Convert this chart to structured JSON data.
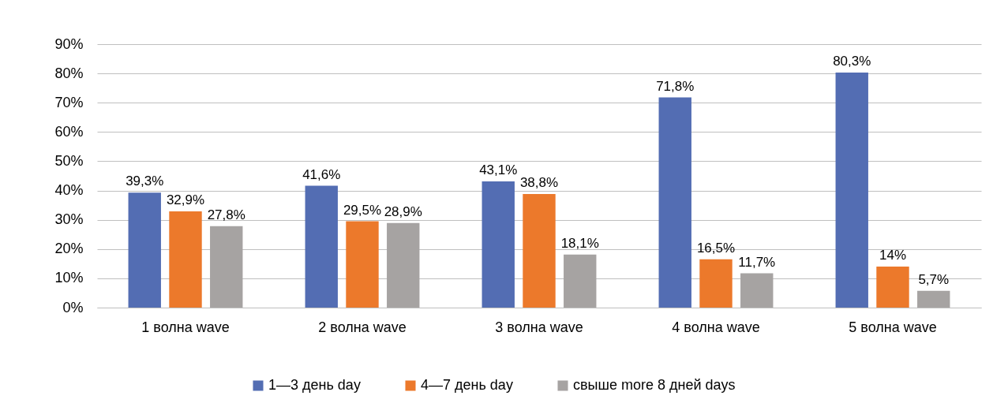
{
  "chart_data": {
    "type": "bar",
    "categories": [
      "1 волна  wave",
      "2 волна wave",
      "3 волна wave",
      "4 волна wave",
      "5 волна wave"
    ],
    "series": [
      {
        "name": "1—3 день day",
        "color": "#536db3",
        "values": [
          39.3,
          41.6,
          43.1,
          71.8,
          80.3
        ],
        "value_labels": [
          "39,3%",
          "41,6%",
          "43,1%",
          "71,8%",
          "80,3%"
        ]
      },
      {
        "name": "4—7 день day",
        "color": "#ec792b",
        "values": [
          32.9,
          29.5,
          38.8,
          16.5,
          14
        ],
        "value_labels": [
          "32,9%",
          "29,5%",
          "38,8%",
          "16,5%",
          "14%"
        ]
      },
      {
        "name": "свыше more 8 дней days",
        "color": "#a6a3a2",
        "values": [
          27.8,
          28.9,
          18.1,
          11.7,
          5.7
        ],
        "value_labels": [
          "27,8%",
          "28,9%",
          "18,1%",
          "11,7%",
          "5,7%"
        ]
      }
    ],
    "ylim": [
      0,
      90
    ],
    "yticks": [
      {
        "value": 0,
        "label": "0%"
      },
      {
        "value": 10,
        "label": "10%"
      },
      {
        "value": 20,
        "label": "20%"
      },
      {
        "value": 30,
        "label": "30%"
      },
      {
        "value": 40,
        "label": "40%"
      },
      {
        "value": 50,
        "label": "50%"
      },
      {
        "value": 60,
        "label": "60%"
      },
      {
        "value": 70,
        "label": "70%"
      },
      {
        "value": 80,
        "label": "80%"
      },
      {
        "value": 90,
        "label": "90%"
      }
    ],
    "grid": "y",
    "legend": "bottom"
  }
}
